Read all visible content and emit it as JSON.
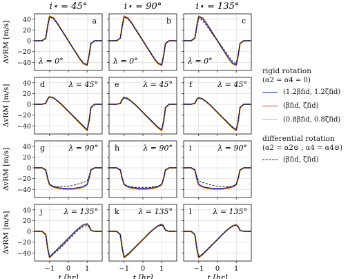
{
  "column_titles": [
    "i⋆ = 45°",
    "i⋆ = 90°",
    "i⋆ = 135°"
  ],
  "row_lambda": [
    "λ = 0°",
    "λ = 45°",
    "λ = 90°",
    "λ = 135°"
  ],
  "panel_letters": [
    "a",
    "b",
    "c",
    "d",
    "e",
    "f",
    "g",
    "h",
    "i",
    "j",
    "k",
    "l"
  ],
  "axes": {
    "ylabel": "ΔvRM [m/s]",
    "xlabel": "t [hr]",
    "xticks": [
      "−1",
      "0",
      "1"
    ],
    "yticks": [
      "40",
      "20",
      "0",
      "−20",
      "−40"
    ]
  },
  "legend": {
    "rigid_title": "rigid rotation",
    "rigid_sub": "(α2 = α4 = 0)",
    "rigid_items": [
      {
        "label": "(1.2βfid, 1.2ζfid)",
        "color": "#2233bb"
      },
      {
        "label": "(βfid, ζfid)",
        "color": "#dd3333"
      },
      {
        "label": "(0.8βfid, 0.8ζfid)",
        "color": "#f5b400"
      }
    ],
    "diff_title": "differential rotation",
    "diff_sub": "(α2 = α2⊙ , α4 = α4⊙)",
    "diff_item": {
      "label": "(βfid, ζfid)",
      "color": "#111111",
      "dash": "dashed"
    }
  },
  "chart_data": {
    "type": "line",
    "x_unit": "hr",
    "y_unit": "m/s",
    "xlim": [
      -1.8,
      1.8
    ],
    "ylim": [
      -55,
      50
    ],
    "grid": true,
    "columns_i_star_deg": [
      45,
      90,
      135
    ],
    "rows_lambda_deg": [
      0,
      45,
      90,
      135
    ],
    "x": [
      -1.8,
      -1.4,
      -1.2,
      -1.1,
      -1.0,
      -0.8,
      -0.6,
      -0.4,
      -0.2,
      0.0,
      0.2,
      0.4,
      0.6,
      0.8,
      1.0,
      1.1,
      1.2,
      1.4,
      1.8
    ],
    "series_names": [
      "(1.2βfid, 1.2ζfid)",
      "(βfid, ζfid)",
      "(0.8βfid, 0.8ζfid)",
      "differential (βfid, ζfid)"
    ],
    "panels": [
      {
        "letter": "a",
        "i_star": 45,
        "lambda": 0,
        "rigid": [
          0,
          0,
          5,
          28,
          45,
          42,
          33,
          22,
          11,
          0,
          -11,
          -22,
          -33,
          -42,
          -45,
          -28,
          -5,
          0,
          0
        ],
        "diff": [
          0,
          0,
          5,
          28,
          45,
          42,
          33,
          22,
          11,
          0,
          -11,
          -22,
          -33,
          -42,
          -45,
          -28,
          -5,
          0,
          0
        ]
      },
      {
        "letter": "b",
        "i_star": 90,
        "lambda": 0,
        "rigid": [
          0,
          0,
          5,
          28,
          45,
          42,
          33,
          22,
          11,
          0,
          -11,
          -22,
          -33,
          -42,
          -45,
          -28,
          -5,
          0,
          0
        ],
        "diff": [
          0,
          0,
          5,
          28,
          44,
          41,
          32,
          21,
          10,
          0,
          -10,
          -21,
          -32,
          -41,
          -44,
          -28,
          -5,
          0,
          0
        ]
      },
      {
        "letter": "c",
        "i_star": 135,
        "lambda": 0,
        "rigid": [
          0,
          0,
          5,
          28,
          45,
          42,
          33,
          22,
          11,
          0,
          -11,
          -22,
          -33,
          -42,
          -45,
          -28,
          -5,
          0,
          0
        ],
        "diff": [
          0,
          0,
          5,
          26,
          42,
          38,
          29,
          19,
          9,
          0,
          -9,
          -19,
          -29,
          -38,
          -42,
          -26,
          -5,
          0,
          0
        ]
      },
      {
        "letter": "d",
        "i_star": 45,
        "lambda": 45,
        "rigid": [
          0,
          0,
          2,
          10,
          14,
          12,
          7,
          1,
          -6,
          -13,
          -20,
          -27,
          -34,
          -41,
          -48,
          -32,
          -6,
          0,
          0
        ],
        "diff": [
          0,
          0,
          2,
          10,
          14,
          12,
          7,
          1,
          -6,
          -13,
          -20,
          -27,
          -34,
          -41,
          -48,
          -32,
          -6,
          0,
          0
        ]
      },
      {
        "letter": "e",
        "i_star": 90,
        "lambda": 45,
        "rigid": [
          0,
          0,
          2,
          9,
          12,
          10,
          5,
          -1,
          -8,
          -15,
          -22,
          -29,
          -36,
          -43,
          -48,
          -32,
          -6,
          0,
          0
        ],
        "diff": [
          0,
          0,
          2,
          11,
          14,
          11,
          5,
          -1,
          -8,
          -15,
          -22,
          -29,
          -36,
          -43,
          -47,
          -31,
          -6,
          0,
          0
        ]
      },
      {
        "letter": "f",
        "i_star": 135,
        "lambda": 45,
        "rigid": [
          0,
          0,
          2,
          9,
          12,
          10,
          5,
          -1,
          -8,
          -15,
          -22,
          -29,
          -36,
          -43,
          -48,
          -32,
          -6,
          0,
          0
        ],
        "diff": [
          0,
          0,
          2,
          9,
          12,
          10,
          5,
          -1,
          -8,
          -15,
          -22,
          -29,
          -36,
          -43,
          -47,
          -31,
          -6,
          0,
          0
        ]
      },
      {
        "letter": "g",
        "i_star": 45,
        "lambda": 90,
        "rigid": [
          0,
          0,
          -4,
          -20,
          -31,
          -35,
          -37,
          -38,
          -39,
          -39,
          -39,
          -38,
          -37,
          -35,
          -31,
          -20,
          -4,
          0,
          0
        ],
        "diff": [
          0,
          0,
          -4,
          -20,
          -31,
          -34,
          -35,
          -35,
          -35,
          -34,
          -33,
          -31,
          -29,
          -27,
          -24,
          -16,
          -3,
          0,
          0
        ]
      },
      {
        "letter": "h",
        "i_star": 90,
        "lambda": 90,
        "rigid": [
          0,
          0,
          -4,
          -20,
          -31,
          -35,
          -37,
          -38,
          -39,
          -39,
          -39,
          -38,
          -37,
          -35,
          -31,
          -20,
          -4,
          0,
          0
        ],
        "diff": [
          0,
          0,
          -4,
          -20,
          -31,
          -34,
          -35,
          -36,
          -36,
          -36,
          -36,
          -36,
          -35,
          -34,
          -31,
          -20,
          -4,
          0,
          0
        ]
      },
      {
        "letter": "i",
        "i_star": 135,
        "lambda": 90,
        "rigid": [
          0,
          0,
          -4,
          -20,
          -31,
          -35,
          -37,
          -38,
          -39,
          -39,
          -39,
          -38,
          -37,
          -35,
          -31,
          -20,
          -4,
          0,
          0
        ],
        "diff": [
          0,
          0,
          -3,
          -16,
          -24,
          -27,
          -29,
          -31,
          -33,
          -34,
          -35,
          -35,
          -35,
          -34,
          -31,
          -20,
          -4,
          0,
          0
        ]
      },
      {
        "letter": "j",
        "i_star": 45,
        "lambda": 135,
        "rigid": [
          0,
          0,
          -6,
          -32,
          -48,
          -41,
          -34,
          -27,
          -20,
          -13,
          -6,
          1,
          7,
          12,
          14,
          10,
          2,
          0,
          0
        ],
        "diff": [
          0,
          0,
          -6,
          -32,
          -48,
          -42,
          -36,
          -30,
          -23,
          -16,
          -9,
          -2,
          4,
          9,
          11,
          8,
          2,
          0,
          0
        ]
      },
      {
        "letter": "k",
        "i_star": 90,
        "lambda": 135,
        "rigid": [
          0,
          0,
          -6,
          -32,
          -48,
          -43,
          -36,
          -29,
          -22,
          -15,
          -8,
          -1,
          5,
          10,
          12,
          9,
          2,
          0,
          0
        ],
        "diff": [
          0,
          0,
          -6,
          -31,
          -47,
          -43,
          -36,
          -29,
          -22,
          -15,
          -8,
          -1,
          5,
          11,
          14,
          11,
          2,
          0,
          0
        ]
      },
      {
        "letter": "l",
        "i_star": 135,
        "lambda": 135,
        "rigid": [
          0,
          0,
          -6,
          -32,
          -48,
          -43,
          -36,
          -29,
          -22,
          -15,
          -8,
          -1,
          5,
          10,
          12,
          9,
          2,
          0,
          0
        ],
        "diff": [
          0,
          0,
          -6,
          -31,
          -47,
          -43,
          -36,
          -29,
          -22,
          -15,
          -8,
          -1,
          5,
          10,
          12,
          9,
          2,
          0,
          0
        ]
      }
    ],
    "rigid_scale": {
      "(1.2βfid, 1.2ζfid)": 0.985,
      "(βfid, ζfid)": 1.0,
      "(0.8βfid, 0.8ζfid)": 1.015
    }
  }
}
